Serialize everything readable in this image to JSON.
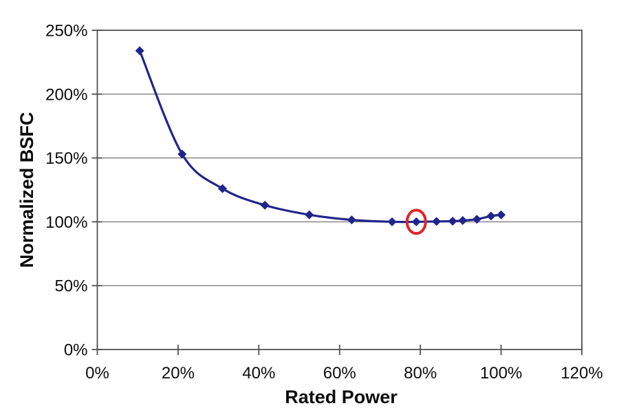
{
  "chart_data": {
    "type": "line",
    "title": "",
    "xlabel": "Rated Power",
    "ylabel": "Normalized BSFC",
    "xlim": [
      0,
      120
    ],
    "ylim": [
      0,
      250
    ],
    "x_ticks": [
      0,
      20,
      40,
      60,
      80,
      100,
      120
    ],
    "x_tick_labels": [
      "0%",
      "20%",
      "40%",
      "60%",
      "80%",
      "100%",
      "120%"
    ],
    "y_ticks": [
      0,
      50,
      100,
      150,
      200,
      250
    ],
    "y_tick_labels": [
      "0%",
      "50%",
      "100%",
      "150%",
      "200%",
      "250%"
    ],
    "grid": "horizontal",
    "legend": "none",
    "series": [
      {
        "color": "#21258B",
        "marker": "diamond",
        "smooth": true,
        "points": [
          [
            10.5,
            234
          ],
          [
            21,
            153
          ],
          [
            31,
            126
          ],
          [
            41.5,
            113
          ],
          [
            52.5,
            105.5
          ],
          [
            63,
            101.5
          ],
          [
            73,
            100
          ],
          [
            79,
            100
          ],
          [
            84,
            100.3
          ],
          [
            88,
            100.5
          ],
          [
            90.5,
            101
          ],
          [
            94,
            102
          ],
          [
            97.5,
            104.5
          ],
          [
            100,
            105.5
          ]
        ]
      }
    ],
    "annotation": {
      "type": "circle",
      "point": [
        79,
        100
      ],
      "color": "#E32428"
    }
  },
  "colors": {
    "background": "#ffffff",
    "gridline": "#7E7E7E",
    "axis": "#515151",
    "text": "#0d0d0d",
    "series": "#21258B",
    "highlight": "#E32428"
  }
}
